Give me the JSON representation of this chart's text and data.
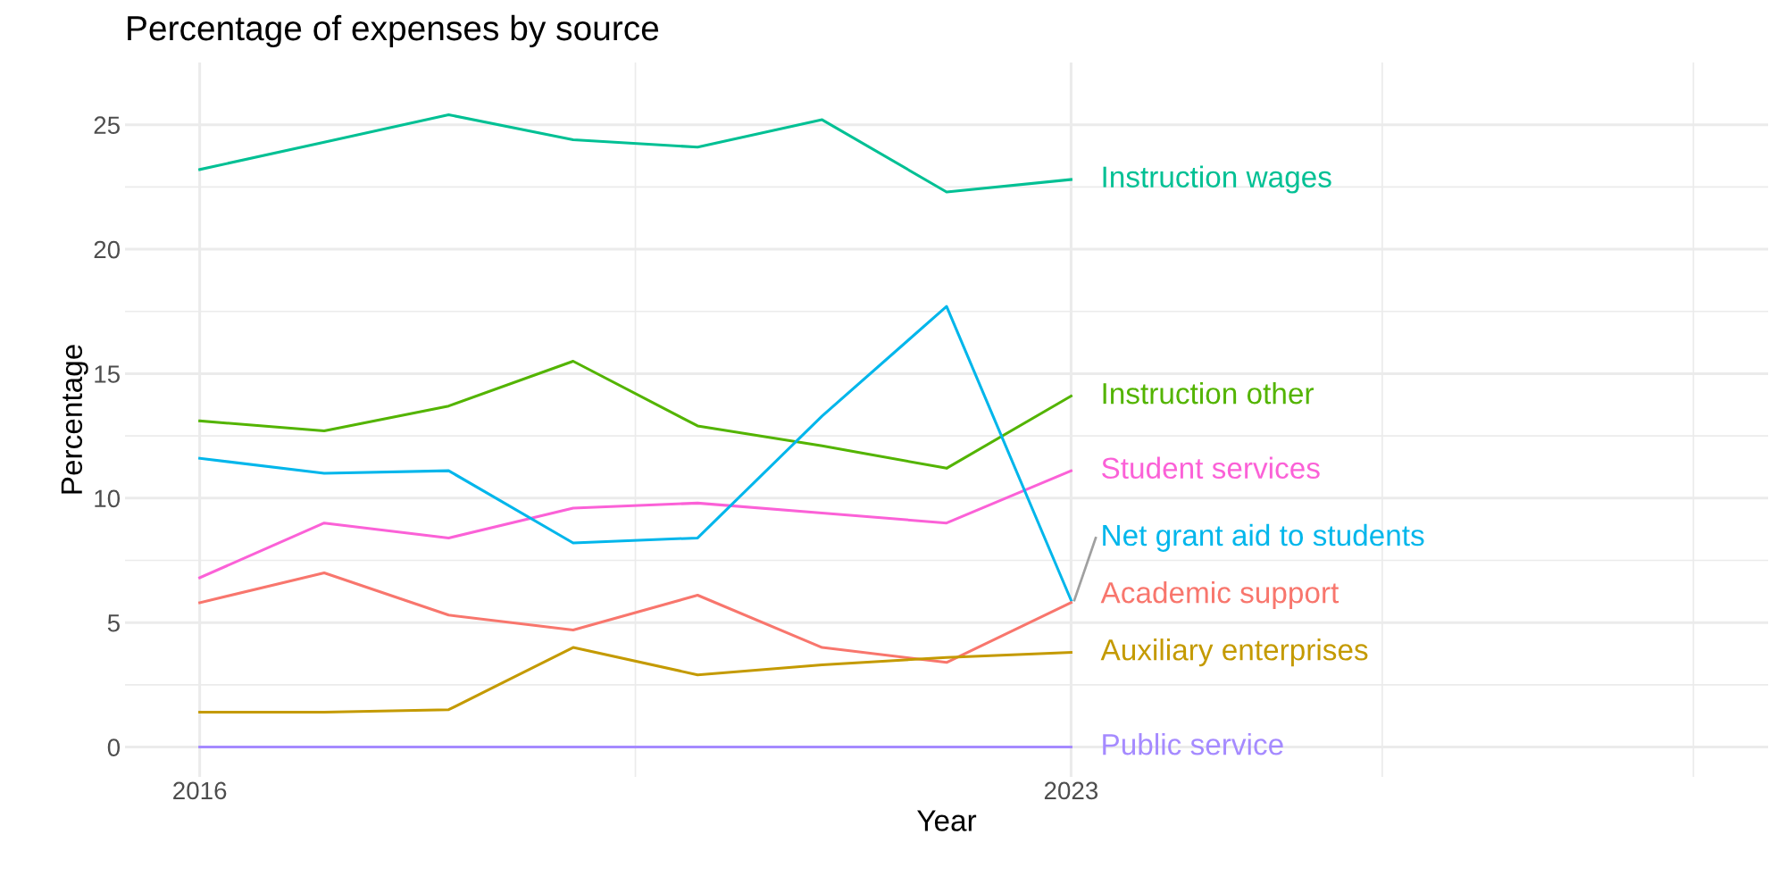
{
  "chart_data": {
    "type": "line",
    "title": "Percentage of expenses by source",
    "xlabel": "Year",
    "ylabel": "Percentage",
    "x": [
      2016,
      2017,
      2018,
      2019,
      2020,
      2021,
      2022,
      2023
    ],
    "series": [
      {
        "name": "Instruction wages",
        "color": "#00c094",
        "values": [
          23.2,
          24.3,
          25.4,
          24.4,
          24.1,
          25.2,
          22.3,
          22.8
        ]
      },
      {
        "name": "Instruction other",
        "color": "#53b400",
        "values": [
          13.1,
          12.7,
          13.7,
          15.5,
          12.9,
          12.1,
          11.2,
          14.1
        ]
      },
      {
        "name": "Student services",
        "color": "#fb61d7",
        "values": [
          6.8,
          9.0,
          8.4,
          9.6,
          9.8,
          9.4,
          9.0,
          11.1
        ]
      },
      {
        "name": "Net grant aid to students",
        "color": "#00b6eb",
        "values": [
          11.6,
          11.0,
          11.1,
          8.2,
          8.4,
          13.3,
          17.7,
          5.9
        ]
      },
      {
        "name": "Academic support",
        "color": "#f8766d",
        "values": [
          5.8,
          7.0,
          5.3,
          4.7,
          6.1,
          4.0,
          3.4,
          5.8
        ]
      },
      {
        "name": "Auxiliary enterprises",
        "color": "#c49a00",
        "values": [
          1.4,
          1.4,
          1.5,
          4.0,
          2.9,
          3.3,
          3.6,
          3.8
        ]
      },
      {
        "name": "Public service",
        "color": "#a58aff",
        "values": [
          0,
          0,
          0,
          0,
          0,
          0,
          0,
          0
        ]
      }
    ],
    "xlim": [
      2015.4,
      2028.6
    ],
    "ylim": [
      -1.2,
      27.5
    ],
    "xticks": [
      2016,
      2023,
      {
        "value": 2019.5,
        "label": null
      },
      {
        "value": 2025.5,
        "label": null
      },
      {
        "value": 2028,
        "label": null
      }
    ],
    "yticks": [
      0,
      5,
      10,
      15,
      20,
      25,
      {
        "value": 2.5,
        "label": null
      },
      {
        "value": 7.5,
        "label": null
      },
      {
        "value": 12.5,
        "label": null
      },
      {
        "value": 17.5,
        "label": null
      },
      {
        "value": 22.5,
        "label": null
      }
    ],
    "grid": true,
    "legend": "right",
    "line_style": "solid",
    "marker": "none"
  }
}
